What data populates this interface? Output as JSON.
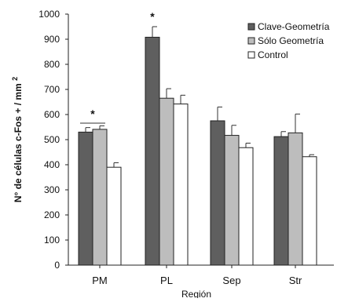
{
  "chart_data": {
    "type": "bar",
    "categories": [
      "PM",
      "PL",
      "Sep",
      "Str"
    ],
    "series": [
      {
        "name": "Clave-Geometría",
        "color": "#5f5f5f",
        "values": [
          530,
          908,
          575,
          512
        ],
        "errors": [
          18,
          42,
          55,
          20
        ]
      },
      {
        "name": "Sólo Geometría",
        "color": "#bdbdbd",
        "values": [
          541,
          665,
          517,
          527
        ],
        "errors": [
          14,
          38,
          40,
          75
        ]
      },
      {
        "name": "Control",
        "color": "#ffffff",
        "values": [
          390,
          642,
          468,
          432
        ],
        "errors": [
          18,
          35,
          18,
          8
        ]
      }
    ],
    "xlabel": "Región",
    "ylabel": "N° de células c-Fos + / mm",
    "ylabel_superscript": "2",
    "ylim": [
      0,
      1000
    ],
    "yticks": [
      "0",
      "100",
      "200",
      "300",
      "400",
      "500",
      "600",
      "700",
      "800",
      "900",
      "1000"
    ],
    "grid": false,
    "legend_position": "top-right",
    "annotations": [
      {
        "text": "*",
        "category": "PM",
        "bracket": true
      },
      {
        "text": "*",
        "category": "PL",
        "bracket": false
      }
    ]
  }
}
